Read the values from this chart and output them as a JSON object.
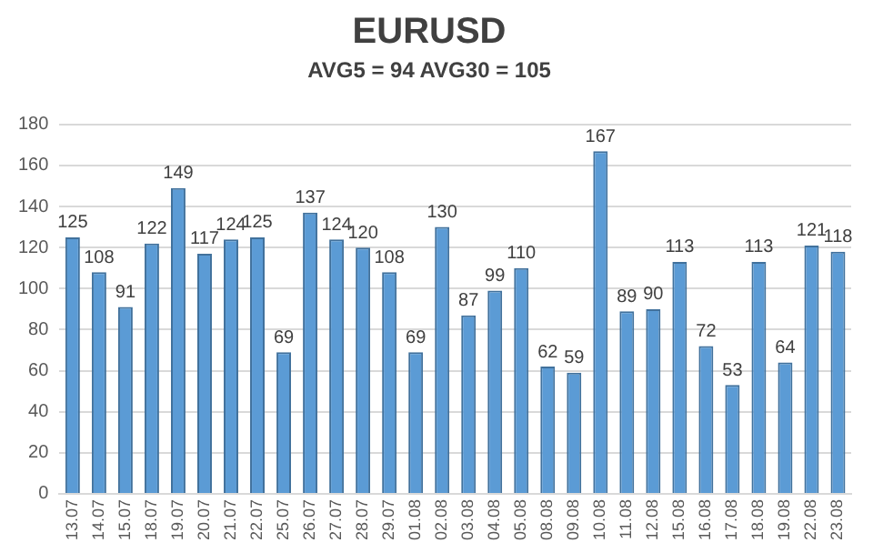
{
  "chart_data": {
    "type": "bar",
    "title": "EURUSD",
    "subtitle": "AVG5 = 94 AVG30 = 105",
    "categories": [
      "13.07",
      "14.07",
      "15.07",
      "18.07",
      "19.07",
      "20.07",
      "21.07",
      "22.07",
      "25.07",
      "26.07",
      "27.07",
      "28.07",
      "29.07",
      "01.08",
      "02.08",
      "03.08",
      "04.08",
      "05.08",
      "08.08",
      "09.08",
      "10.08",
      "11.08",
      "12.08",
      "15.08",
      "16.08",
      "17.08",
      "18.08",
      "19.08",
      "22.08",
      "23.08"
    ],
    "values": [
      125,
      108,
      91,
      122,
      149,
      117,
      124,
      125,
      69,
      137,
      124,
      120,
      108,
      69,
      130,
      87,
      99,
      110,
      62,
      59,
      167,
      89,
      90,
      113,
      72,
      53,
      113,
      64,
      121,
      118
    ],
    "color": "#5b9bd5",
    "ylim": [
      0,
      180
    ],
    "yticks": [
      0,
      20,
      40,
      60,
      80,
      100,
      120,
      140,
      160,
      180
    ],
    "grid": "y",
    "data_labels": true,
    "legend": false
  }
}
